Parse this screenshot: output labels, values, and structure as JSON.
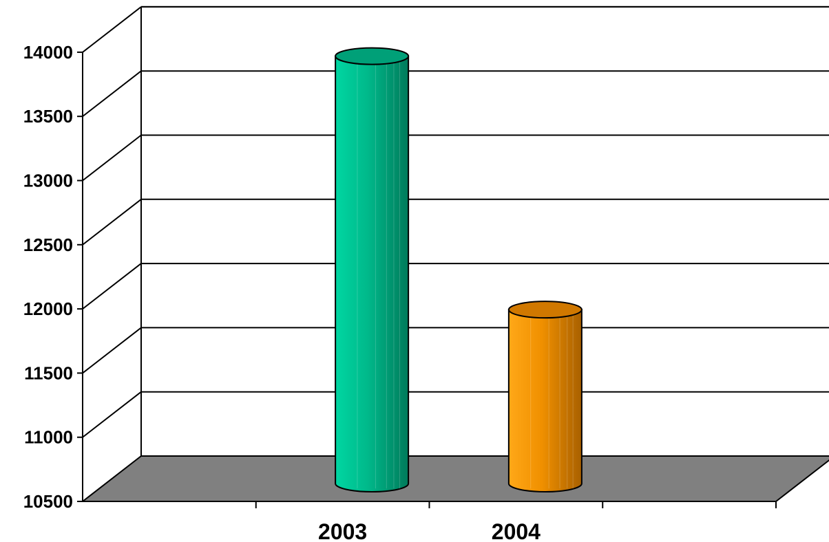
{
  "chart_data": {
    "type": "bar",
    "style": "3d-cylinder",
    "title": "",
    "xlabel": "",
    "ylabel": "",
    "categories": [
      "2003",
      "2004"
    ],
    "values": [
      13830,
      11855
    ],
    "ylim": [
      10500,
      14000
    ],
    "yticks": [
      "14000",
      "13500",
      "13000",
      "12500",
      "12000",
      "11500",
      "11000",
      "10500"
    ],
    "grid": true,
    "legend": "none",
    "colors": {
      "bar_2003": "#00c090",
      "bar_2004": "#f59a00",
      "floor": "#808080",
      "background": "#ffffff"
    }
  }
}
